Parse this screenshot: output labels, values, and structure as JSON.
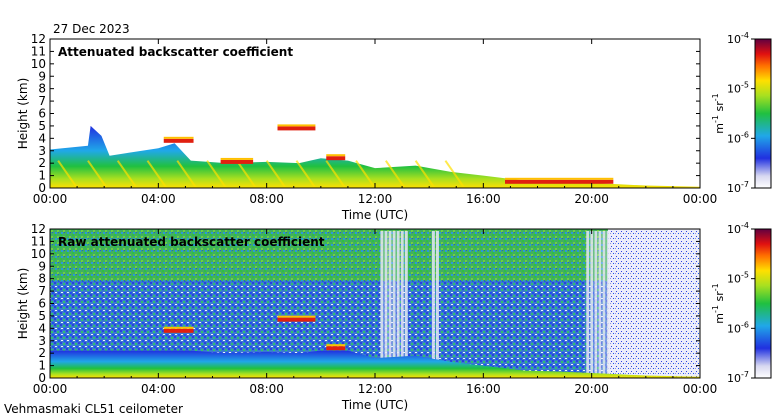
{
  "date": "27 Dec 2023",
  "site": "Vehmasmaki CL51 ceilometer",
  "cbar_unit": {
    "main": "m",
    "sup1": "-1",
    "mid": " sr",
    "sup2": "-1"
  },
  "chart_data": [
    {
      "type": "heatmap",
      "title": "Attenuated backscatter coefficient",
      "xlabel": "Time (UTC)",
      "ylabel": "Height (km)",
      "xlim": [
        0,
        24
      ],
      "ylim": [
        0,
        12
      ],
      "xticks": [
        "00:00",
        "04:00",
        "08:00",
        "12:00",
        "16:00",
        "20:00",
        "00:00"
      ],
      "yticks": [
        "0",
        "1",
        "2",
        "3",
        "4",
        "5",
        "6",
        "7",
        "8",
        "9",
        "10",
        "11",
        "12"
      ],
      "colorbar": {
        "scale": "log",
        "ticks": [
          "10",
          "10",
          "10",
          "10"
        ],
        "exps": [
          "-7",
          "-6",
          "-5",
          "-4"
        ]
      },
      "boundary_layer_top_km": [
        [
          0,
          3.1
        ],
        [
          1.4,
          3.4
        ],
        [
          1.5,
          5.0
        ],
        [
          1.9,
          4.2
        ],
        [
          2.2,
          2.6
        ],
        [
          4.0,
          3.2
        ],
        [
          4.6,
          3.6
        ],
        [
          5.2,
          2.2
        ],
        [
          6.5,
          2.0
        ],
        [
          8.0,
          2.1
        ],
        [
          9.2,
          2.0
        ],
        [
          10.0,
          2.4
        ],
        [
          11.0,
          2.2
        ],
        [
          12.0,
          1.6
        ],
        [
          13.5,
          1.8
        ],
        [
          14.8,
          1.3
        ],
        [
          16.0,
          1.0
        ],
        [
          17.5,
          0.6
        ],
        [
          19.0,
          0.5
        ],
        [
          21.0,
          0.3
        ],
        [
          22.0,
          0.2
        ],
        [
          24.0,
          0.1
        ]
      ],
      "cloud_layers": [
        {
          "t_start": 4.2,
          "t_end": 5.3,
          "height_km": 3.8
        },
        {
          "t_start": 8.4,
          "t_end": 9.8,
          "height_km": 4.8
        },
        {
          "t_start": 10.2,
          "t_end": 10.9,
          "height_km": 2.4
        },
        {
          "t_start": 6.3,
          "t_end": 7.5,
          "height_km": 2.1
        },
        {
          "t_start": 16.8,
          "t_end": 20.8,
          "height_km": 0.5
        }
      ]
    },
    {
      "type": "heatmap",
      "title": "Raw attenuated backscatter coefficient",
      "xlabel": "Time (UTC)",
      "ylabel": "Height (km)",
      "xlim": [
        0,
        24
      ],
      "ylim": [
        0,
        12
      ],
      "xticks": [
        "00:00",
        "04:00",
        "08:00",
        "12:00",
        "16:00",
        "20:00",
        "00:00"
      ],
      "yticks": [
        "0",
        "1",
        "2",
        "3",
        "4",
        "5",
        "6",
        "7",
        "8",
        "9",
        "10",
        "11",
        "12"
      ],
      "colorbar": {
        "scale": "log",
        "ticks": [
          "10",
          "10",
          "10",
          "10"
        ],
        "exps": [
          "-7",
          "-6",
          "-5",
          "-4"
        ]
      },
      "noisy_columns_hours": [
        [
          12.2,
          13.2
        ],
        [
          14.1,
          14.3
        ],
        [
          19.8,
          20.6
        ]
      ],
      "clear_region_hours": [
        20.6,
        24.0
      ],
      "cloud_layers": [
        {
          "t_start": 4.2,
          "t_end": 5.3,
          "height_km": 3.8
        },
        {
          "t_start": 8.4,
          "t_end": 9.8,
          "height_km": 4.7
        },
        {
          "t_start": 10.2,
          "t_end": 10.9,
          "height_km": 2.4
        }
      ]
    }
  ]
}
